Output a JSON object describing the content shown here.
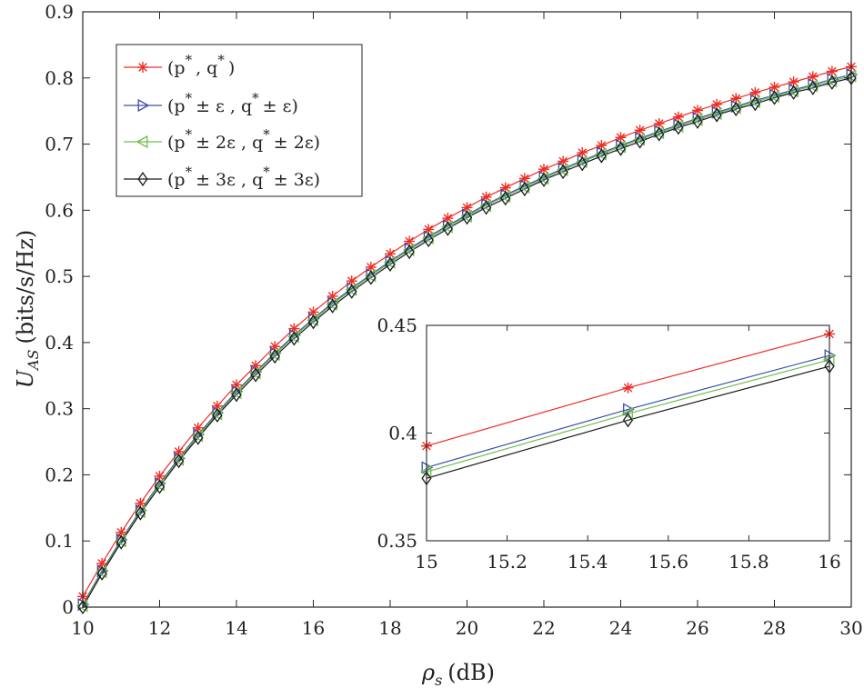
{
  "chart_data": [
    {
      "type": "line",
      "title": "",
      "xlabel_symbol": "ρ",
      "xlabel_sub": "s",
      "xlabel_unit": "(dB)",
      "ylabel_symbol": "U",
      "ylabel_sub": "AS",
      "ylabel_unit": "(bits/s/Hz)",
      "xlim": [
        10,
        30
      ],
      "ylim": [
        0,
        0.9
      ],
      "xticks": [
        10,
        12,
        14,
        16,
        18,
        20,
        22,
        24,
        26,
        28,
        30
      ],
      "xtick_labels": [
        "10",
        "12",
        "14",
        "16",
        "18",
        "20",
        "22",
        "24",
        "26",
        "28",
        "30"
      ],
      "yticks": [
        0,
        0.1,
        0.2,
        0.3,
        0.4,
        0.5,
        0.6,
        0.7,
        0.8,
        0.9
      ],
      "ytick_labels": [
        "0",
        "0.1",
        "0.2",
        "0.3",
        "0.4",
        "0.5",
        "0.6",
        "0.7",
        "0.8",
        "0.9"
      ],
      "legend_location": "top-left",
      "x": [
        10,
        10.5,
        11,
        11.5,
        12,
        12.5,
        13,
        13.5,
        14,
        14.5,
        15,
        15.5,
        16,
        16.5,
        17,
        17.5,
        18,
        18.5,
        19,
        19.5,
        20,
        20.5,
        21,
        21.5,
        22,
        22.5,
        23,
        23.5,
        24,
        24.5,
        25,
        25.5,
        26,
        26.5,
        27,
        27.5,
        28,
        28.5,
        29,
        29.5,
        30
      ],
      "series": [
        {
          "name": "(p*, q*)",
          "legend": {
            "a": "(p",
            "b": ", q",
            "c": ")"
          },
          "color": "#ee2d24",
          "marker": "asterisk",
          "values": [
            0.016,
            0.066,
            0.113,
            0.157,
            0.198,
            0.235,
            0.271,
            0.304,
            0.336,
            0.365,
            0.394,
            0.421,
            0.446,
            0.47,
            0.493,
            0.514,
            0.534,
            0.553,
            0.571,
            0.588,
            0.604,
            0.62,
            0.634,
            0.648,
            0.662,
            0.674,
            0.687,
            0.698,
            0.71,
            0.721,
            0.731,
            0.741,
            0.751,
            0.76,
            0.769,
            0.778,
            0.786,
            0.794,
            0.802,
            0.81,
            0.817
          ]
        },
        {
          "name": "(p* ± ε, q* ± ε)",
          "legend": {
            "a": "(p",
            "b": "± ε , q",
            "c": "± ε)"
          },
          "color": "#3d50a6",
          "marker": "triangle-right",
          "values": [
            0.004,
            0.055,
            0.102,
            0.146,
            0.187,
            0.225,
            0.261,
            0.294,
            0.326,
            0.356,
            0.384,
            0.411,
            0.436,
            0.46,
            0.482,
            0.503,
            0.523,
            0.542,
            0.56,
            0.577,
            0.593,
            0.609,
            0.623,
            0.637,
            0.65,
            0.663,
            0.675,
            0.687,
            0.698,
            0.709,
            0.719,
            0.729,
            0.739,
            0.748,
            0.757,
            0.766,
            0.774,
            0.782,
            0.79,
            0.798,
            0.805
          ]
        },
        {
          "name": "(p* ± 2ε, q* ± 2ε)",
          "legend": {
            "a": "(p",
            "b": "± 2ε , q",
            "c": "± 2ε)"
          },
          "color": "#6fbf4a",
          "marker": "triangle-left",
          "values": [
            0.002,
            0.053,
            0.1,
            0.144,
            0.185,
            0.223,
            0.259,
            0.292,
            0.324,
            0.354,
            0.382,
            0.409,
            0.434,
            0.458,
            0.48,
            0.501,
            0.521,
            0.54,
            0.558,
            0.575,
            0.591,
            0.607,
            0.621,
            0.635,
            0.648,
            0.661,
            0.673,
            0.685,
            0.696,
            0.707,
            0.717,
            0.727,
            0.737,
            0.746,
            0.755,
            0.764,
            0.772,
            0.78,
            0.788,
            0.795,
            0.803
          ]
        },
        {
          "name": "(p* ± 3ε, q* ± 3ε)",
          "legend": {
            "a": "(p",
            "b": "± 3ε , q",
            "c": "± 3ε)"
          },
          "color": "#1a1a1a",
          "marker": "diamond",
          "values": [
            0.0,
            0.051,
            0.098,
            0.142,
            0.182,
            0.221,
            0.256,
            0.29,
            0.321,
            0.351,
            0.379,
            0.406,
            0.431,
            0.455,
            0.477,
            0.498,
            0.518,
            0.537,
            0.555,
            0.572,
            0.589,
            0.604,
            0.618,
            0.632,
            0.646,
            0.658,
            0.67,
            0.682,
            0.693,
            0.704,
            0.715,
            0.725,
            0.734,
            0.744,
            0.753,
            0.761,
            0.77,
            0.778,
            0.785,
            0.793,
            0.8
          ]
        }
      ]
    },
    {
      "type": "line",
      "title": "inset",
      "xlim": [
        15,
        16
      ],
      "ylim": [
        0.35,
        0.45
      ],
      "xticks": [
        15,
        15.2,
        15.4,
        15.6,
        15.8,
        16
      ],
      "xtick_labels": [
        "15",
        "15.2",
        "15.4",
        "15.6",
        "15.8",
        "16"
      ],
      "yticks": [
        0.35,
        0.4,
        0.45
      ],
      "ytick_labels": [
        "0.35",
        "0.4",
        "0.45"
      ],
      "x": [
        15,
        15.5,
        16
      ],
      "series": [
        {
          "name": "(p*, q*)",
          "color": "#ee2d24",
          "marker": "asterisk",
          "values": [
            0.394,
            0.421,
            0.446
          ]
        },
        {
          "name": "(p* ± ε, q* ± ε)",
          "color": "#3d50a6",
          "marker": "triangle-right",
          "values": [
            0.384,
            0.411,
            0.436
          ]
        },
        {
          "name": "(p* ± 2ε, q* ± 2ε)",
          "color": "#6fbf4a",
          "marker": "triangle-left",
          "values": [
            0.382,
            0.409,
            0.434
          ]
        },
        {
          "name": "(p* ± 3ε, q* ± 3ε)",
          "color": "#1a1a1a",
          "marker": "diamond",
          "values": [
            0.379,
            0.406,
            0.431
          ]
        }
      ]
    }
  ]
}
